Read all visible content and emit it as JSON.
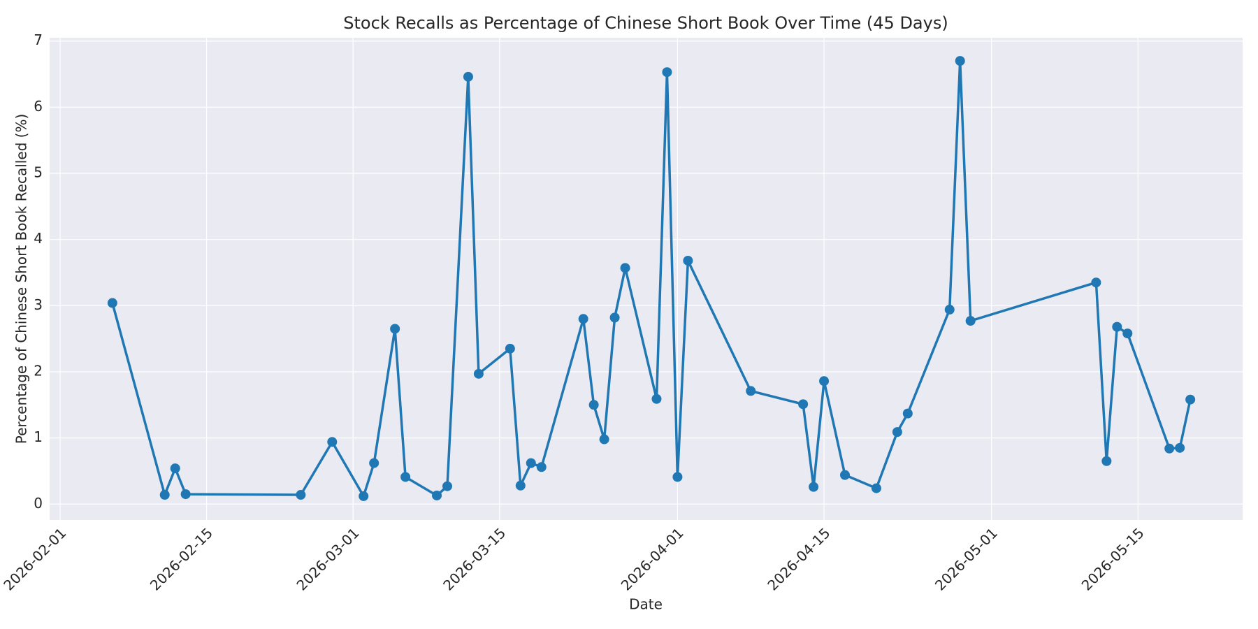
{
  "chart_data": {
    "type": "line",
    "title": "Stock Recalls as Percentage of Chinese Short Book Over Time (45 Days)",
    "x_label": "Date",
    "y_label": "Percentage of Chinese Short Book Recalled (%)",
    "x": [
      "2026-02-06",
      "2026-02-11",
      "2026-02-12",
      "2026-02-13",
      "2026-02-24",
      "2026-02-27",
      "2026-03-02",
      "2026-03-03",
      "2026-03-05",
      "2026-03-06",
      "2026-03-09",
      "2026-03-10",
      "2026-03-12",
      "2026-03-13",
      "2026-03-16",
      "2026-03-17",
      "2026-03-18",
      "2026-03-19",
      "2026-03-23",
      "2026-03-24",
      "2026-03-25",
      "2026-03-26",
      "2026-03-27",
      "2026-03-30",
      "2026-03-31",
      "2026-04-01",
      "2026-04-02",
      "2026-04-08",
      "2026-04-13",
      "2026-04-14",
      "2026-04-15",
      "2026-04-17",
      "2026-04-20",
      "2026-04-22",
      "2026-04-23",
      "2026-04-27",
      "2026-04-28",
      "2026-04-29",
      "2026-05-11",
      "2026-05-12",
      "2026-05-13",
      "2026-05-14",
      "2026-05-18",
      "2026-05-19",
      "2026-05-20"
    ],
    "values": [
      3.04,
      0.14,
      0.54,
      0.15,
      0.14,
      0.94,
      0.12,
      0.62,
      2.65,
      0.41,
      0.13,
      0.27,
      6.46,
      1.97,
      2.35,
      0.28,
      0.62,
      0.56,
      2.8,
      1.5,
      0.98,
      2.82,
      3.57,
      1.59,
      6.53,
      0.41,
      3.68,
      1.71,
      1.51,
      0.26,
      1.86,
      0.44,
      0.24,
      1.09,
      1.37,
      2.94,
      6.7,
      2.77,
      3.35,
      0.65,
      2.68,
      2.58,
      0.84,
      0.85,
      1.58
    ],
    "color": "#1f77b4",
    "xlim": [
      "2026-01-31",
      "2026-05-25"
    ],
    "xticks": [
      "2026-02-01",
      "2026-02-15",
      "2026-03-01",
      "2026-03-15",
      "2026-04-01",
      "2026-04-15",
      "2026-05-01",
      "2026-05-15"
    ],
    "ylim": [
      -0.24,
      7.05
    ],
    "yticks": [
      0,
      1,
      2,
      3,
      4,
      5,
      6,
      7
    ],
    "grid": true
  }
}
